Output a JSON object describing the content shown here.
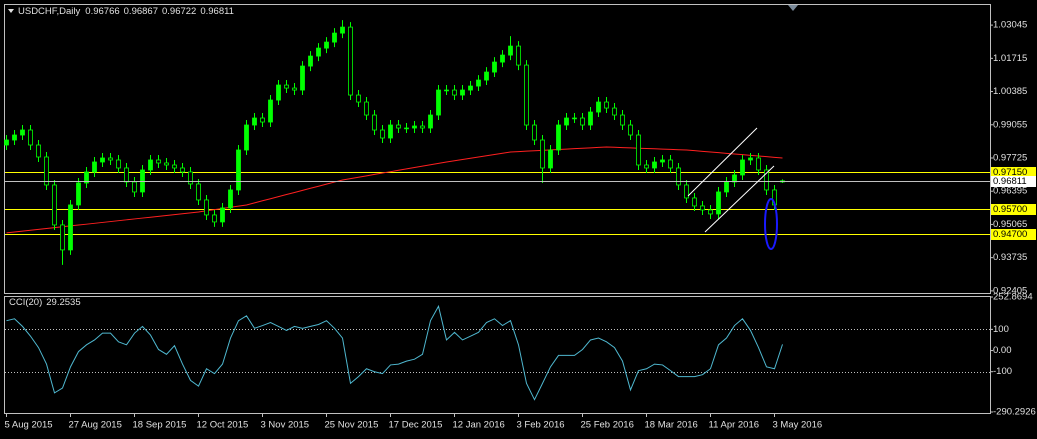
{
  "chart_data": [
    {
      "type": "candlestick",
      "title": "USDCHF,Daily",
      "categories": [
        "5 Aug 2015",
        null,
        null,
        null,
        null,
        null,
        null,
        null,
        "27 Aug 2015",
        null,
        null,
        null,
        null,
        null,
        null,
        null,
        "18 Sep 2015",
        null,
        null,
        null,
        null,
        null,
        null,
        null,
        "12 Oct 2015",
        null,
        null,
        null,
        null,
        null,
        null,
        null,
        "3 Nov 2015",
        null,
        null,
        null,
        null,
        null,
        null,
        null,
        "25 Nov 2015",
        null,
        null,
        null,
        null,
        null,
        null,
        null,
        "17 Dec 2015",
        null,
        null,
        null,
        null,
        null,
        null,
        null,
        "12 Jan 2016",
        null,
        null,
        null,
        null,
        null,
        null,
        null,
        "3 Feb 2016",
        null,
        null,
        null,
        null,
        null,
        null,
        null,
        "25 Feb 2016",
        null,
        null,
        null,
        null,
        null,
        null,
        null,
        "18 Mar 2016",
        null,
        null,
        null,
        null,
        null,
        null,
        null,
        "11 Apr 2016",
        null,
        null,
        null,
        null,
        null,
        null,
        null,
        "3 May 2016",
        null
      ],
      "open": [
        0.98245,
        0.98445,
        0.98645,
        0.98845,
        0.98245,
        0.97765,
        0.96645,
        0.95045,
        0.94045,
        0.95845,
        0.96725,
        0.97165,
        0.97565,
        0.97725,
        0.97645,
        0.97325,
        0.96765,
        0.96365,
        0.97245,
        0.97645,
        0.97525,
        0.97445,
        0.97325,
        0.97165,
        0.96685,
        0.96045,
        0.95445,
        0.95165,
        0.95725,
        0.96445,
        0.98045,
        0.99045,
        0.99325,
        0.99165,
        1.00045,
        1.00645,
        1.00525,
        1.00445,
        1.01405,
        1.01805,
        1.02125,
        1.02365,
        1.02725,
        1.02965,
        1.00245,
        0.99965,
        0.99445,
        0.98845,
        0.98525,
        0.99045,
        0.98925,
        0.98925,
        0.99005,
        0.98925,
        0.99445,
        1.00445,
        1.00445,
        1.00245,
        1.00445,
        1.00605,
        1.00845,
        1.01165,
        1.01565,
        1.01845,
        1.02205,
        1.01445,
        0.99045,
        0.98445,
        0.97325,
        0.98045,
        0.99045,
        0.99325,
        0.99325,
        0.99045,
        0.99565,
        0.99965,
        0.99725,
        0.99445,
        0.99045,
        0.98645,
        0.97445,
        0.97325,
        0.97565,
        0.97645,
        0.97325,
        0.96645,
        0.96125,
        0.95805,
        0.95645,
        0.95485,
        0.96365,
        0.96765,
        0.97045,
        0.97645,
        0.97725,
        0.97245,
        0.96445,
        0.96766
      ],
      "high": [
        0.98645,
        0.98845,
        0.99045,
        0.99045,
        0.98445,
        0.97965,
        0.96845,
        0.95245,
        0.96045,
        0.96925,
        0.97365,
        0.97765,
        0.97925,
        0.97925,
        0.97845,
        0.97525,
        0.96965,
        0.97445,
        0.97845,
        0.97845,
        0.97725,
        0.97645,
        0.97525,
        0.97365,
        0.96885,
        0.96245,
        0.95645,
        0.95925,
        0.96645,
        0.98245,
        0.99245,
        0.99525,
        0.99525,
        1.00245,
        1.00845,
        1.00845,
        1.00725,
        1.01605,
        1.02005,
        1.02325,
        1.02565,
        1.02925,
        1.03245,
        1.03165,
        1.00445,
        1.00165,
        0.99645,
        0.99045,
        0.99245,
        0.99245,
        0.99125,
        0.99205,
        0.99205,
        0.99645,
        1.00645,
        1.00645,
        1.00645,
        1.00645,
        1.00805,
        1.01045,
        1.01365,
        1.01765,
        1.02045,
        1.02605,
        1.02405,
        1.01645,
        0.99245,
        0.98645,
        0.98245,
        0.99245,
        0.99525,
        0.99525,
        0.99525,
        0.99765,
        1.00165,
        1.00165,
        0.99925,
        0.99645,
        0.99245,
        0.98845,
        0.97645,
        0.97765,
        0.97845,
        0.97845,
        0.97525,
        0.96845,
        0.96325,
        0.96005,
        0.95845,
        0.96565,
        0.96965,
        0.97245,
        0.97845,
        0.97925,
        0.97925,
        0.97445,
        0.96645,
        0.96867
      ],
      "low": [
        0.98045,
        0.98245,
        0.98445,
        0.98045,
        0.97565,
        0.96445,
        0.94845,
        0.93445,
        0.93845,
        0.95645,
        0.96525,
        0.96965,
        0.97365,
        0.97445,
        0.97125,
        0.96565,
        0.96165,
        0.96165,
        0.97045,
        0.97325,
        0.97245,
        0.97125,
        0.96965,
        0.96485,
        0.95845,
        0.95245,
        0.94965,
        0.94965,
        0.95525,
        0.96245,
        0.97845,
        0.98845,
        0.98965,
        0.98965,
        0.99845,
        1.00325,
        1.00245,
        1.00245,
        1.01205,
        1.01605,
        1.01925,
        1.02165,
        1.02525,
        1.00045,
        0.99765,
        0.99245,
        0.98645,
        0.98325,
        0.98325,
        0.98725,
        0.98725,
        0.98725,
        0.98725,
        0.98725,
        0.99245,
        1.00245,
        1.00045,
        1.00045,
        1.00245,
        1.00405,
        1.00645,
        1.00965,
        1.01365,
        1.01645,
        1.01245,
        0.98845,
        0.98245,
        0.96725,
        0.97125,
        0.97845,
        0.98845,
        0.99125,
        0.98845,
        0.98845,
        0.99365,
        0.99525,
        0.99245,
        0.98845,
        0.98445,
        0.97245,
        0.97125,
        0.97125,
        0.97365,
        0.97125,
        0.96445,
        0.95925,
        0.95605,
        0.95445,
        0.95285,
        0.95285,
        0.96165,
        0.96565,
        0.96845,
        0.97445,
        0.97045,
        0.96245,
        0.95645,
        0.96722
      ],
      "close": [
        0.98445,
        0.98645,
        0.98845,
        0.98245,
        0.97765,
        0.96645,
        0.95045,
        0.94045,
        0.95845,
        0.96725,
        0.97165,
        0.97565,
        0.97725,
        0.97645,
        0.97325,
        0.96765,
        0.96365,
        0.97245,
        0.97645,
        0.97525,
        0.97445,
        0.97325,
        0.97165,
        0.96685,
        0.96045,
        0.95445,
        0.95165,
        0.95725,
        0.96445,
        0.98045,
        0.99045,
        0.99325,
        0.99165,
        1.00045,
        1.00645,
        1.00525,
        1.00445,
        1.01405,
        1.01805,
        1.02125,
        1.02365,
        1.02725,
        1.02965,
        1.00245,
        0.99965,
        0.99445,
        0.98845,
        0.98525,
        0.99045,
        0.98925,
        0.98925,
        0.99005,
        0.98925,
        0.99445,
        1.00445,
        1.00445,
        1.00245,
        1.00445,
        1.00605,
        1.00845,
        1.01165,
        1.01565,
        1.01845,
        1.02205,
        1.01445,
        0.99045,
        0.98445,
        0.97325,
        0.98045,
        0.99045,
        0.99325,
        0.99325,
        0.99045,
        0.99565,
        0.99965,
        0.99725,
        0.99445,
        0.99045,
        0.98645,
        0.97445,
        0.97325,
        0.97565,
        0.97645,
        0.97325,
        0.96645,
        0.96125,
        0.95805,
        0.95645,
        0.95485,
        0.96365,
        0.96765,
        0.97045,
        0.97645,
        0.97725,
        0.97245,
        0.96445,
        0.95845,
        0.96811
      ],
      "color": "#00ff00",
      "series": [
        {
          "color": "#ff2020",
          "values": [
            0.94725,
            0.9476,
            0.94795,
            0.9483,
            0.94865,
            0.949,
            0.94935,
            0.9497,
            0.95005,
            0.9504,
            0.95075,
            0.9511,
            0.95145,
            0.9518,
            0.95215,
            0.9525,
            0.95285,
            0.9532,
            0.95355,
            0.9539,
            0.95425,
            0.9546,
            0.95495,
            0.9553,
            0.95565,
            0.95612,
            0.95658,
            0.95705,
            0.95752,
            0.95798,
            0.95845,
            0.95928,
            0.96012,
            0.96095,
            0.96178,
            0.96262,
            0.96345,
            0.96428,
            0.96512,
            0.96595,
            0.96678,
            0.96762,
            0.96845,
            0.969,
            0.96956,
            0.97011,
            0.97067,
            0.97122,
            0.97177,
            0.97233,
            0.97288,
            0.97343,
            0.97399,
            0.97454,
            0.9751,
            0.97565,
            0.97615,
            0.97665,
            0.97715,
            0.97765,
            0.97815,
            0.97865,
            0.97915,
            0.97965,
            0.97982,
            0.97998,
            0.98015,
            0.98032,
            0.98048,
            0.98065,
            0.98082,
            0.98098,
            0.98115,
            0.98132,
            0.98148,
            0.98165,
            0.98153,
            0.98141,
            0.98129,
            0.98117,
            0.98105,
            0.98093,
            0.98081,
            0.98069,
            0.98057,
            0.98045,
            0.98018,
            0.97992,
            0.97965,
            0.97938,
            0.97912,
            0.97885,
            0.97858,
            0.97832,
            0.97805,
            0.97778,
            0.97752,
            0.97725
          ]
        }
      ],
      "ylim": [
        0.9232,
        1.0385
      ],
      "yticks": [
        1.03045,
        1.01715,
        1.00385,
        0.99055,
        0.97725,
        0.96395,
        0.95065,
        0.93735,
        0.92405
      ],
      "levels": [
        {
          "value": 0.9715,
          "label": "0.97150"
        },
        {
          "value": 0.957,
          "label": "0.95700"
        },
        {
          "value": 0.947,
          "label": "0.94700"
        }
      ],
      "level_color": "#ffff00",
      "level_style": "solid"
    },
    {
      "type": "line",
      "title": "CCI(20)",
      "color": "#4fb8d0",
      "values": [
        141,
        150,
        114,
        68,
        14,
        -64,
        -200,
        -177,
        -77,
        -5,
        27,
        50,
        82,
        82,
        41,
        27,
        82,
        114,
        73,
        5,
        -18,
        23,
        -64,
        -141,
        -168,
        -86,
        -109,
        -64,
        59,
        141,
        164,
        105,
        118,
        132,
        114,
        95,
        114,
        105,
        114,
        123,
        141,
        105,
        59,
        -155,
        -123,
        -86,
        -100,
        -109,
        -68,
        -64,
        -50,
        -41,
        -18,
        141,
        209,
        50,
        86,
        50,
        68,
        86,
        132,
        150,
        118,
        141,
        27,
        -155,
        -232,
        -155,
        -77,
        -23,
        -23,
        -23,
        5,
        50,
        59,
        41,
        14,
        -50,
        -186,
        -95,
        -86,
        -64,
        -68,
        -95,
        -123,
        -123,
        -123,
        -114,
        -86,
        27,
        59,
        118,
        150,
        95,
        14,
        -77,
        -86,
        29.2535
      ],
      "ylim": [
        -290.2926,
        252.8694
      ],
      "yticks": [
        252.8694,
        100,
        {
          "value": 0,
          "label": "0.00"
        },
        -100,
        -290.2926
      ],
      "levels": [
        100,
        -100
      ],
      "level_color": "#c0c0c0",
      "level_style": "dotted"
    }
  ]
}
